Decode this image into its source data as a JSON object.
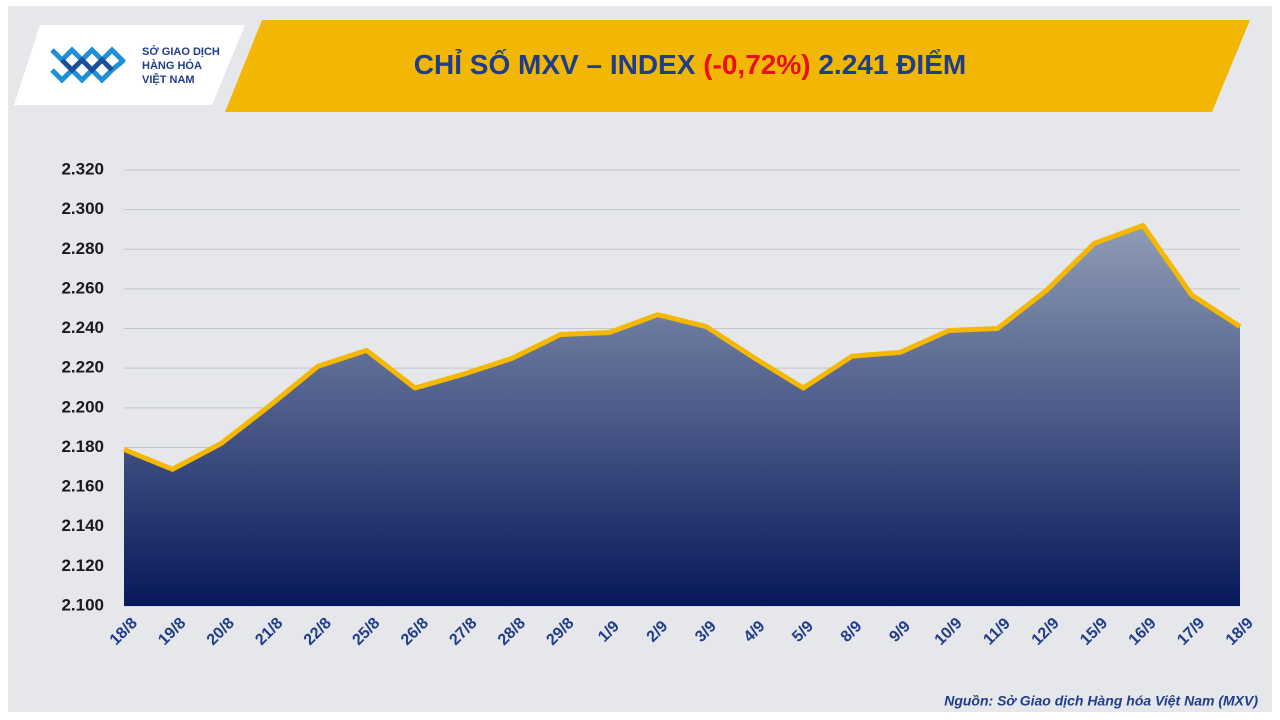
{
  "logo": {
    "lines": [
      "SỞ GIAO DỊCH",
      "HÀNG HÓA",
      "VIỆT NAM"
    ]
  },
  "chart_data": {
    "type": "area",
    "title": [
      "CHỈ SỐ MXV – INDEX",
      "(-0,72%)",
      "2.241 ĐIỂM"
    ],
    "source": "Nguồn: Sở Giao dịch Hàng hóa Việt Nam (MXV)",
    "categories": [
      "18/8",
      "19/8",
      "20/8",
      "21/8",
      "22/8",
      "25/8",
      "26/8",
      "27/8",
      "28/8",
      "29/8",
      "1/9",
      "2/9",
      "3/9",
      "4/9",
      "5/9",
      "8/9",
      "9/9",
      "10/9",
      "11/9",
      "12/9",
      "15/9",
      "16/9",
      "17/9",
      "18/9"
    ],
    "values": [
      2179,
      2169,
      2182,
      2201,
      2221,
      2229,
      2210,
      2217,
      2225,
      2237,
      2238,
      2247,
      2241,
      2225,
      2210,
      2226,
      2228,
      2239,
      2240,
      2259,
      2283,
      2292,
      2257,
      2241
    ],
    "color": "#f5b800",
    "fill_colors": [
      "#8f9cb6",
      "#07185a"
    ],
    "ylim": [
      2100,
      2320
    ],
    "yticks": [
      {
        "value": 2100,
        "label": "2.100"
      },
      {
        "value": 2120,
        "label": "2.120"
      },
      {
        "value": 2140,
        "label": "2.140"
      },
      {
        "value": 2160,
        "label": "2.160"
      },
      {
        "value": 2180,
        "label": "2.180"
      },
      {
        "value": 2200,
        "label": "2.200"
      },
      {
        "value": 2220,
        "label": "2.220"
      },
      {
        "value": 2240,
        "label": "2.240"
      },
      {
        "value": 2260,
        "label": "2.260"
      },
      {
        "value": 2280,
        "label": "2.280"
      },
      {
        "value": 2300,
        "label": "2.300"
      },
      {
        "value": 2320,
        "label": "2.320"
      }
    ],
    "grid": true
  }
}
